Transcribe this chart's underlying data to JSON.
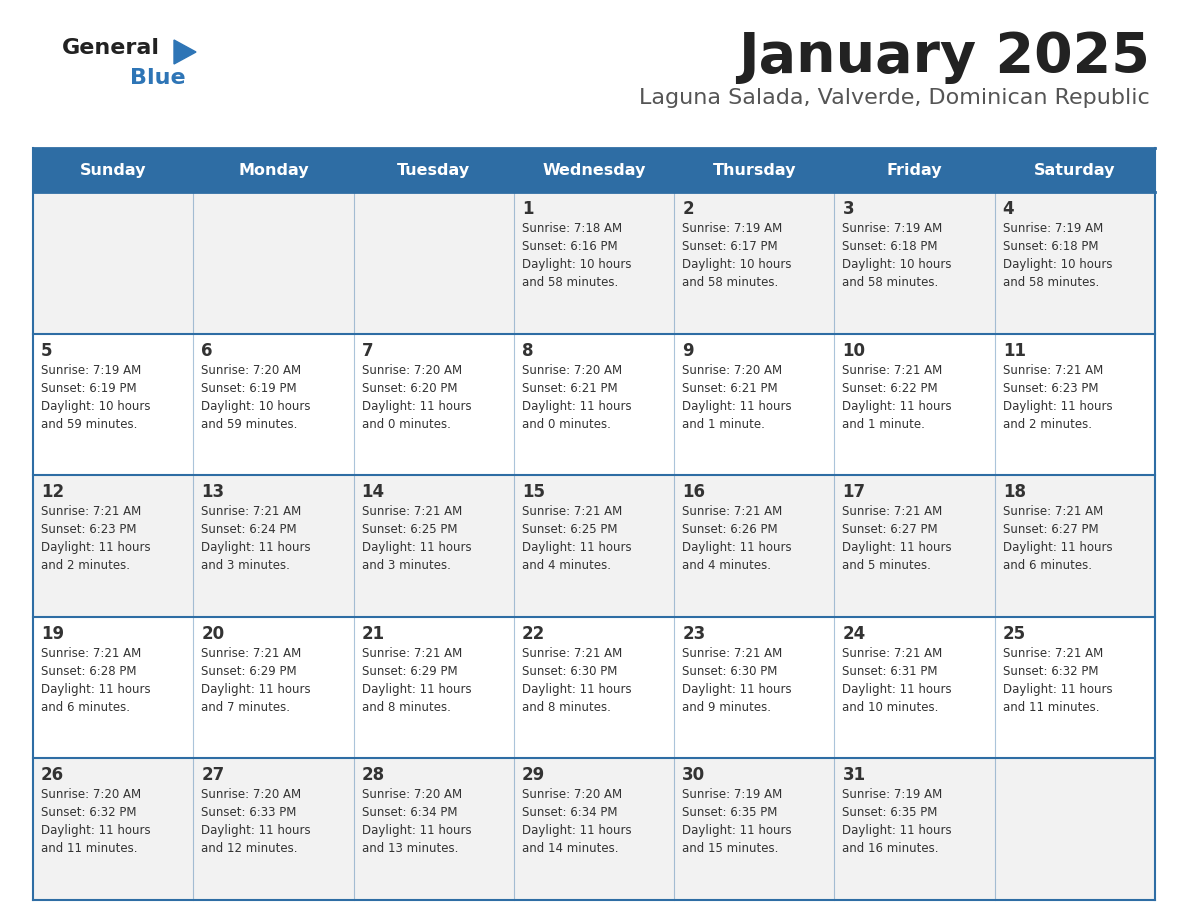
{
  "title": "January 2025",
  "subtitle": "Laguna Salada, Valverde, Dominican Republic",
  "days_of_week": [
    "Sunday",
    "Monday",
    "Tuesday",
    "Wednesday",
    "Thursday",
    "Friday",
    "Saturday"
  ],
  "header_bg": "#2E6DA4",
  "header_text": "#FFFFFF",
  "row_bg_odd": "#F2F2F2",
  "row_bg_even": "#FFFFFF",
  "cell_text": "#333333",
  "day_num_color": "#333333",
  "border_color": "#2E6DA4",
  "title_color": "#222222",
  "subtitle_color": "#555555",
  "logo_general_color": "#222222",
  "logo_blue_color": "#2E75B6",
  "calendar_data": [
    [
      null,
      null,
      null,
      {
        "day": 1,
        "sunrise": "7:18 AM",
        "sunset": "6:16 PM",
        "daylight": "10 hours\nand 58 minutes."
      },
      {
        "day": 2,
        "sunrise": "7:19 AM",
        "sunset": "6:17 PM",
        "daylight": "10 hours\nand 58 minutes."
      },
      {
        "day": 3,
        "sunrise": "7:19 AM",
        "sunset": "6:18 PM",
        "daylight": "10 hours\nand 58 minutes."
      },
      {
        "day": 4,
        "sunrise": "7:19 AM",
        "sunset": "6:18 PM",
        "daylight": "10 hours\nand 58 minutes."
      }
    ],
    [
      {
        "day": 5,
        "sunrise": "7:19 AM",
        "sunset": "6:19 PM",
        "daylight": "10 hours\nand 59 minutes."
      },
      {
        "day": 6,
        "sunrise": "7:20 AM",
        "sunset": "6:19 PM",
        "daylight": "10 hours\nand 59 minutes."
      },
      {
        "day": 7,
        "sunrise": "7:20 AM",
        "sunset": "6:20 PM",
        "daylight": "11 hours\nand 0 minutes."
      },
      {
        "day": 8,
        "sunrise": "7:20 AM",
        "sunset": "6:21 PM",
        "daylight": "11 hours\nand 0 minutes."
      },
      {
        "day": 9,
        "sunrise": "7:20 AM",
        "sunset": "6:21 PM",
        "daylight": "11 hours\nand 1 minute."
      },
      {
        "day": 10,
        "sunrise": "7:21 AM",
        "sunset": "6:22 PM",
        "daylight": "11 hours\nand 1 minute."
      },
      {
        "day": 11,
        "sunrise": "7:21 AM",
        "sunset": "6:23 PM",
        "daylight": "11 hours\nand 2 minutes."
      }
    ],
    [
      {
        "day": 12,
        "sunrise": "7:21 AM",
        "sunset": "6:23 PM",
        "daylight": "11 hours\nand 2 minutes."
      },
      {
        "day": 13,
        "sunrise": "7:21 AM",
        "sunset": "6:24 PM",
        "daylight": "11 hours\nand 3 minutes."
      },
      {
        "day": 14,
        "sunrise": "7:21 AM",
        "sunset": "6:25 PM",
        "daylight": "11 hours\nand 3 minutes."
      },
      {
        "day": 15,
        "sunrise": "7:21 AM",
        "sunset": "6:25 PM",
        "daylight": "11 hours\nand 4 minutes."
      },
      {
        "day": 16,
        "sunrise": "7:21 AM",
        "sunset": "6:26 PM",
        "daylight": "11 hours\nand 4 minutes."
      },
      {
        "day": 17,
        "sunrise": "7:21 AM",
        "sunset": "6:27 PM",
        "daylight": "11 hours\nand 5 minutes."
      },
      {
        "day": 18,
        "sunrise": "7:21 AM",
        "sunset": "6:27 PM",
        "daylight": "11 hours\nand 6 minutes."
      }
    ],
    [
      {
        "day": 19,
        "sunrise": "7:21 AM",
        "sunset": "6:28 PM",
        "daylight": "11 hours\nand 6 minutes."
      },
      {
        "day": 20,
        "sunrise": "7:21 AM",
        "sunset": "6:29 PM",
        "daylight": "11 hours\nand 7 minutes."
      },
      {
        "day": 21,
        "sunrise": "7:21 AM",
        "sunset": "6:29 PM",
        "daylight": "11 hours\nand 8 minutes."
      },
      {
        "day": 22,
        "sunrise": "7:21 AM",
        "sunset": "6:30 PM",
        "daylight": "11 hours\nand 8 minutes."
      },
      {
        "day": 23,
        "sunrise": "7:21 AM",
        "sunset": "6:30 PM",
        "daylight": "11 hours\nand 9 minutes."
      },
      {
        "day": 24,
        "sunrise": "7:21 AM",
        "sunset": "6:31 PM",
        "daylight": "11 hours\nand 10 minutes."
      },
      {
        "day": 25,
        "sunrise": "7:21 AM",
        "sunset": "6:32 PM",
        "daylight": "11 hours\nand 11 minutes."
      }
    ],
    [
      {
        "day": 26,
        "sunrise": "7:20 AM",
        "sunset": "6:32 PM",
        "daylight": "11 hours\nand 11 minutes."
      },
      {
        "day": 27,
        "sunrise": "7:20 AM",
        "sunset": "6:33 PM",
        "daylight": "11 hours\nand 12 minutes."
      },
      {
        "day": 28,
        "sunrise": "7:20 AM",
        "sunset": "6:34 PM",
        "daylight": "11 hours\nand 13 minutes."
      },
      {
        "day": 29,
        "sunrise": "7:20 AM",
        "sunset": "6:34 PM",
        "daylight": "11 hours\nand 14 minutes."
      },
      {
        "day": 30,
        "sunrise": "7:19 AM",
        "sunset": "6:35 PM",
        "daylight": "11 hours\nand 15 minutes."
      },
      {
        "day": 31,
        "sunrise": "7:19 AM",
        "sunset": "6:35 PM",
        "daylight": "11 hours\nand 16 minutes."
      },
      null
    ]
  ]
}
